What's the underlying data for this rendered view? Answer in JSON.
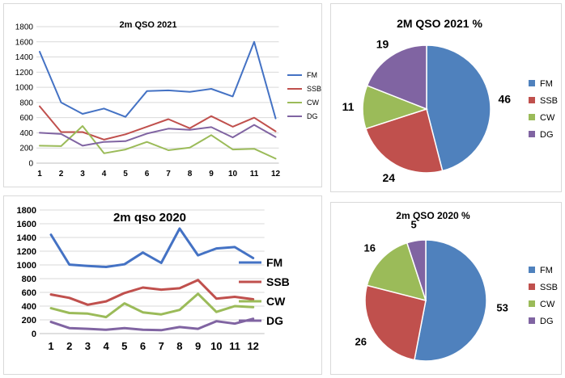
{
  "chart_data": [
    {
      "type": "line",
      "title": "2m QSO 2021",
      "categories": [
        "1",
        "2",
        "3",
        "4",
        "5",
        "6",
        "7",
        "8",
        "9",
        "10",
        "11",
        "12"
      ],
      "y_ticks": [
        "0",
        "200",
        "400",
        "600",
        "800",
        "1000",
        "1200",
        "1400",
        "1600",
        "1800"
      ],
      "ylim": [
        0,
        1800
      ],
      "grid": true,
      "legend_position": "right",
      "series": [
        {
          "name": "FM",
          "color": "#4472c4",
          "values": [
            1470,
            800,
            650,
            720,
            610,
            950,
            960,
            940,
            980,
            880,
            1600,
            590
          ]
        },
        {
          "name": "SSB",
          "color": "#c0504d",
          "values": [
            750,
            410,
            410,
            310,
            380,
            480,
            580,
            460,
            620,
            480,
            600,
            420
          ]
        },
        {
          "name": "CW",
          "color": "#9bbb59",
          "values": [
            230,
            225,
            490,
            130,
            180,
            280,
            170,
            205,
            370,
            180,
            190,
            60
          ]
        },
        {
          "name": "DG",
          "color": "#8064a2",
          "values": [
            400,
            385,
            230,
            280,
            290,
            390,
            455,
            440,
            475,
            340,
            505,
            345
          ]
        }
      ]
    },
    {
      "type": "pie",
      "title": "2M QSO 2021 %",
      "legend_position": "right",
      "slices": [
        {
          "name": "FM",
          "value": 46,
          "label": "46",
          "color": "#4f81bd"
        },
        {
          "name": "SSB",
          "value": 24,
          "label": "24",
          "color": "#c0504d"
        },
        {
          "name": "CW",
          "value": 11,
          "label": "11",
          "color": "#9bbb59"
        },
        {
          "name": "DG",
          "value": 19,
          "label": "19",
          "color": "#8064a2"
        }
      ]
    },
    {
      "type": "line",
      "title": "2m qso 2020",
      "categories": [
        "1",
        "2",
        "3",
        "4",
        "5",
        "6",
        "7",
        "8",
        "9",
        "10",
        "11",
        "12"
      ],
      "y_ticks": [
        "0",
        "200",
        "400",
        "600",
        "800",
        "1000",
        "1200",
        "1400",
        "1600",
        "1800"
      ],
      "ylim": [
        0,
        1800
      ],
      "grid": true,
      "legend_position": "right",
      "series": [
        {
          "name": "FM",
          "color": "#4472c4",
          "values": [
            1440,
            1005,
            985,
            970,
            1010,
            1180,
            1030,
            1530,
            1140,
            1240,
            1260,
            1100
          ]
        },
        {
          "name": "SSB",
          "color": "#c0504d",
          "values": [
            570,
            520,
            420,
            470,
            590,
            670,
            640,
            660,
            780,
            510,
            535,
            500
          ]
        },
        {
          "name": "CW",
          "color": "#9bbb59",
          "values": [
            370,
            300,
            290,
            240,
            440,
            310,
            280,
            345,
            580,
            315,
            400,
            385
          ]
        },
        {
          "name": "DG",
          "color": "#8064a2",
          "values": [
            170,
            80,
            70,
            55,
            80,
            55,
            50,
            95,
            70,
            180,
            145,
            215
          ]
        }
      ]
    },
    {
      "type": "pie",
      "title": "2m QSO 2020 %",
      "legend_position": "right",
      "slices": [
        {
          "name": "FM",
          "value": 53,
          "label": "53",
          "color": "#4f81bd"
        },
        {
          "name": "SSB",
          "value": 26,
          "label": "26",
          "color": "#c0504d"
        },
        {
          "name": "CW",
          "value": 16,
          "label": "16",
          "color": "#9bbb59"
        },
        {
          "name": "DG",
          "value": 5,
          "label": "5",
          "color": "#8064a2"
        }
      ]
    }
  ]
}
